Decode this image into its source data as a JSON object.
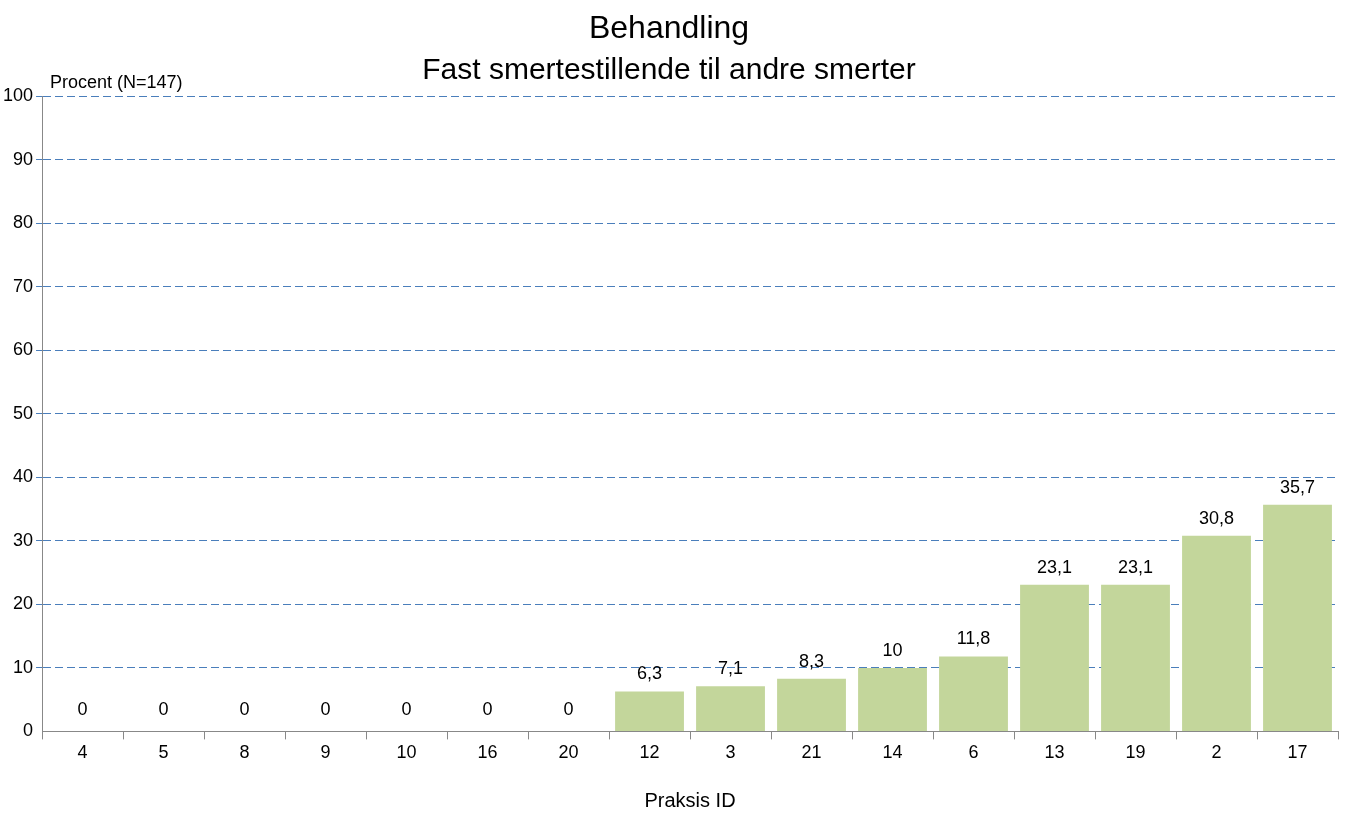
{
  "chart_data": {
    "type": "bar",
    "title": "Behandling",
    "subtitle": "Fast smertestillende til andre smerter",
    "ylabel": "Procent (N=147)",
    "xlabel": "Praksis ID",
    "categories": [
      "4",
      "5",
      "8",
      "9",
      "10",
      "16",
      "20",
      "12",
      "3",
      "21",
      "14",
      "6",
      "13",
      "19",
      "2",
      "17"
    ],
    "values": [
      0,
      0,
      0,
      0,
      0,
      0,
      0,
      6.3,
      7.1,
      8.3,
      10,
      11.8,
      23.1,
      23.1,
      30.8,
      35.7
    ],
    "value_labels": [
      "0",
      "0",
      "0",
      "0",
      "0",
      "0",
      "0",
      "6,3",
      "7,1",
      "8,3",
      "10",
      "11,8",
      "23,1",
      "23,1",
      "30,8",
      "35,7"
    ],
    "color": "#c3d69b",
    "ylim": [
      0,
      100
    ],
    "yticks": [
      0,
      10,
      20,
      30,
      40,
      50,
      60,
      70,
      80,
      90,
      100
    ],
    "grid": "y",
    "legend": false
  }
}
